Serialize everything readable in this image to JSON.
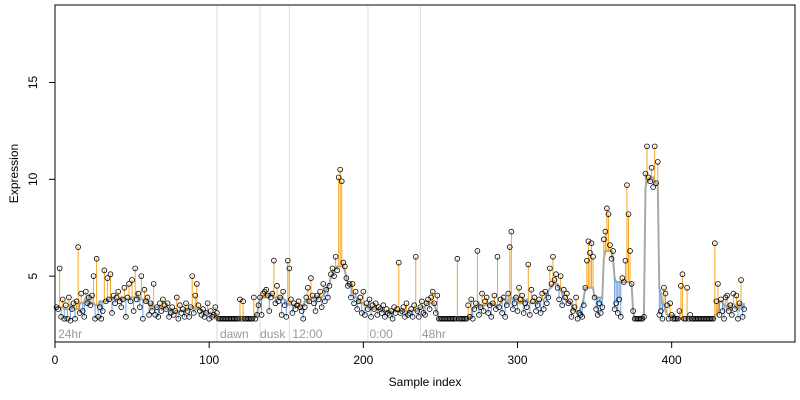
{
  "chart_data": {
    "type": "line",
    "xlabel": "Sample index",
    "ylabel": "Expression",
    "xlim": [
      0,
      480
    ],
    "ylim": [
      1.6,
      19
    ],
    "x_ticks": [
      0,
      100,
      200,
      300,
      400
    ],
    "y_ticks": [
      5,
      10,
      15
    ],
    "grid": false,
    "colors": {
      "point": "#000000",
      "above_baseline": "#f5a623",
      "below_baseline": "#6a9fe0",
      "fit_line": "#a8a8a8",
      "divider": "#dddddd",
      "segment_label": "#9a9a9a"
    },
    "segment_dividers": [
      105,
      133,
      152,
      203,
      237
    ],
    "segment_labels": [
      {
        "text": "24hr",
        "x": 2
      },
      {
        "text": "dawn",
        "x": 107
      },
      {
        "text": "dusk",
        "x": 133
      },
      {
        "text": "12:00",
        "x": 154
      },
      {
        "text": "0:00",
        "x": 204
      },
      {
        "text": "48hr",
        "x": 238
      }
    ],
    "series": [
      {
        "values": [
          3.4,
          3.3,
          5.4,
          2.9,
          3.8,
          2.8,
          3.5,
          2.8,
          3.9,
          2.7,
          3.3,
          3.6,
          2.8,
          3.7,
          6.5,
          3.1,
          4.1,
          3.2,
          2.9,
          4.2,
          3.6,
          3.9,
          3.5,
          4.0,
          5.0,
          2.8,
          5.9,
          2.9,
          3.4,
          2.8,
          3.2,
          5.3,
          3.7,
          4.9,
          3.8,
          5.1,
          3.1,
          4.0,
          3.6,
          3.9,
          4.2,
          3.7,
          3.4,
          3.8,
          4.4,
          2.9,
          3.9,
          4.6,
          3.7,
          4.8,
          3.2,
          5.4,
          3.8,
          4.1,
          3.4,
          5.0,
          2.8,
          4.3,
          3.7,
          3.9,
          3.0,
          3.6,
          3.2,
          4.6,
          3.0,
          3.4,
          2.9,
          3.6,
          3.2,
          3.8,
          3.5,
          3.3,
          3.6,
          2.9,
          3.1,
          3.4,
          3.0,
          3.2,
          3.9,
          2.8,
          3.5,
          3.1,
          3.3,
          2.9,
          3.6,
          3.2,
          2.9,
          3.4,
          5.0,
          3.1,
          4.0,
          4.6,
          3.5,
          3.2,
          3.0,
          3.3,
          2.9,
          3.1,
          3.6,
          2.8,
          3.2,
          2.9,
          3.0,
          3.4,
          3.1,
          2.8,
          2.8,
          2.8,
          2.8,
          2.8,
          2.8,
          2.8,
          2.8,
          2.8,
          2.8,
          2.8,
          2.8,
          2.8,
          2.8,
          3.8,
          2.8,
          3.7,
          2.8,
          2.8,
          2.8,
          2.8,
          2.8,
          2.8,
          3.9,
          2.8,
          3.0,
          3.5,
          3.9,
          3.0,
          4.1,
          4.2,
          4.3,
          4.0,
          3.2,
          3.9,
          4.1,
          5.8,
          3.6,
          4.5,
          3.7,
          3.9,
          3.0,
          4.2,
          3.5,
          2.9,
          5.8,
          5.4,
          3.8,
          3.1,
          3.6,
          3.3,
          3.5,
          3.7,
          3.4,
          3.2,
          2.8,
          3.4,
          3.9,
          4.4,
          3.7,
          4.9,
          4.0,
          3.6,
          3.2,
          4.0,
          3.8,
          4.2,
          3.4,
          4.6,
          3.7,
          4.3,
          3.9,
          4.5,
          5.1,
          5.4,
          5.0,
          6.0,
          5.3,
          10.1,
          10.5,
          9.9,
          5.7,
          5.5,
          4.9,
          4.5,
          4.6,
          3.9,
          4.6,
          3.6,
          4.2,
          3.3,
          3.7,
          3.9,
          3.1,
          4.2,
          3.0,
          3.6,
          3.3,
          3.8,
          2.9,
          3.5,
          3.3,
          3.6,
          3.0,
          3.4,
          3.3,
          3.1,
          3.5,
          2.9,
          3.3,
          3.1,
          3.0,
          3.2,
          2.8,
          3.4,
          3.1,
          3.3,
          5.7,
          3.1,
          3.2,
          3.4,
          2.9,
          3.6,
          3.0,
          3.1,
          3.3,
          2.9,
          3.5,
          6.0,
          3.2,
          2.9,
          3.4,
          3.7,
          3.1,
          3.0,
          3.6,
          3.8,
          3.3,
          3.9,
          4.2,
          3.6,
          3.1,
          4.0,
          2.8,
          2.8,
          2.8,
          2.8,
          2.8,
          2.8,
          2.8,
          2.8,
          2.8,
          2.8,
          2.8,
          2.8,
          5.9,
          2.8,
          2.8,
          2.8,
          2.8,
          2.8,
          2.8,
          3.5,
          2.9,
          3.8,
          2.8,
          3.3,
          3.6,
          6.3,
          3.0,
          3.4,
          4.1,
          3.2,
          3.7,
          3.9,
          3.1,
          3.5,
          2.9,
          3.6,
          4.0,
          3.3,
          6.0,
          3.4,
          3.8,
          3.1,
          3.9,
          2.9,
          3.5,
          4.1,
          6.5,
          7.3,
          3.3,
          3.6,
          3.9,
          3.2,
          4.4,
          3.8,
          4.0,
          3.1,
          3.6,
          3.4,
          5.6,
          3.0,
          4.3,
          3.7,
          3.9,
          3.2,
          3.5,
          3.8,
          3.1,
          4.1,
          3.3,
          4.2,
          3.6,
          3.9,
          5.4,
          4.6,
          6.0,
          4.8,
          5.1,
          4.4,
          3.8,
          5.0,
          3.5,
          4.3,
          3.9,
          4.1,
          3.6,
          3.7,
          2.9,
          3.2,
          3.4,
          3.9,
          2.8,
          3.1,
          3.0,
          2.9,
          3.5,
          4.4,
          5.8,
          6.8,
          6.2,
          6.7,
          6.0,
          3.9,
          3.3,
          3.0,
          3.6,
          3.1,
          3.4,
          6.9,
          7.3,
          8.5,
          8.2,
          6.6,
          5.9,
          6.3,
          3.3,
          3.6,
          3.1,
          3.8,
          2.9,
          4.9,
          4.7,
          5.8,
          9.7,
          8.2,
          6.3,
          4.6,
          3.2,
          2.8,
          2.8,
          2.8,
          2.8,
          2.8,
          2.8,
          2.9,
          10.3,
          11.7,
          10.1,
          9.9,
          10.6,
          9.6,
          11.7,
          9.8,
          10.9,
          3.0,
          3.2,
          2.8,
          4.4,
          4.1,
          3.5,
          2.8,
          3.6,
          3.0,
          2.8,
          2.8,
          2.8,
          2.8,
          3.2,
          4.5,
          5.1,
          2.8,
          2.8,
          4.4,
          2.8,
          3.0,
          2.8,
          2.8,
          2.8,
          2.8,
          2.8,
          2.8,
          2.8,
          2.8,
          2.8,
          2.8,
          2.8,
          2.8,
          2.8,
          2.8,
          2.8,
          6.7,
          3.7,
          4.6,
          3.0,
          3.8,
          3.2,
          2.8,
          3.9,
          4.0,
          3.2,
          3.5,
          3.0,
          4.1,
          3.3,
          4.0,
          2.8,
          3.6,
          4.8,
          2.9,
          3.3
        ]
      }
    ]
  }
}
